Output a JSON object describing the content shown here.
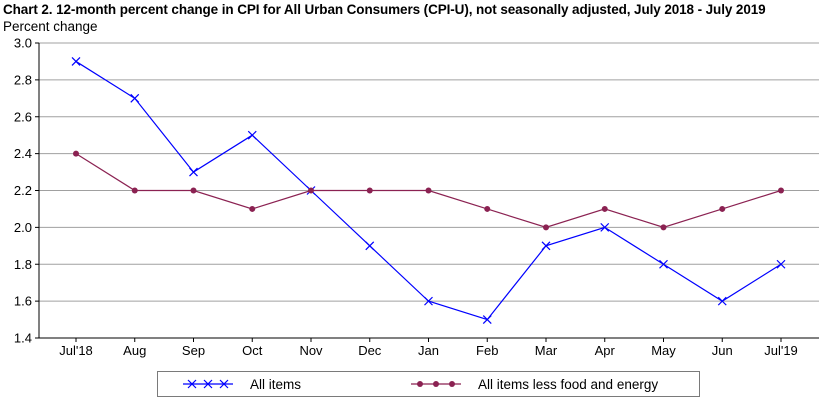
{
  "chart_data": {
    "type": "line",
    "title": "Chart 2. 12-month percent change in CPI for All Urban Consumers (CPI-U), not seasonally adjusted, July 2018 - July 2019",
    "ylabel": "Percent change",
    "xlabel": "",
    "ylim": [
      1.4,
      3.0
    ],
    "yticks": [
      "1.4",
      "1.6",
      "1.8",
      "2.0",
      "2.2",
      "2.4",
      "2.6",
      "2.8",
      "3.0"
    ],
    "grid": true,
    "categories": [
      "Jul'18",
      "Aug",
      "Sep",
      "Oct",
      "Nov",
      "Dec",
      "Jan",
      "Feb",
      "Mar",
      "Apr",
      "May",
      "Jun",
      "Jul'19"
    ],
    "series": [
      {
        "name": "All items",
        "color": "#0000ff",
        "marker": "x",
        "values": [
          2.9,
          2.7,
          2.3,
          2.5,
          2.2,
          1.9,
          1.6,
          1.5,
          1.9,
          2.0,
          1.8,
          1.6,
          1.8
        ]
      },
      {
        "name": "All items less food and energy",
        "color": "#8b2252",
        "marker": "circle",
        "values": [
          2.4,
          2.2,
          2.2,
          2.1,
          2.2,
          2.2,
          2.2,
          2.1,
          2.0,
          2.1,
          2.0,
          2.1,
          2.2
        ]
      }
    ],
    "legend": "bottom"
  }
}
